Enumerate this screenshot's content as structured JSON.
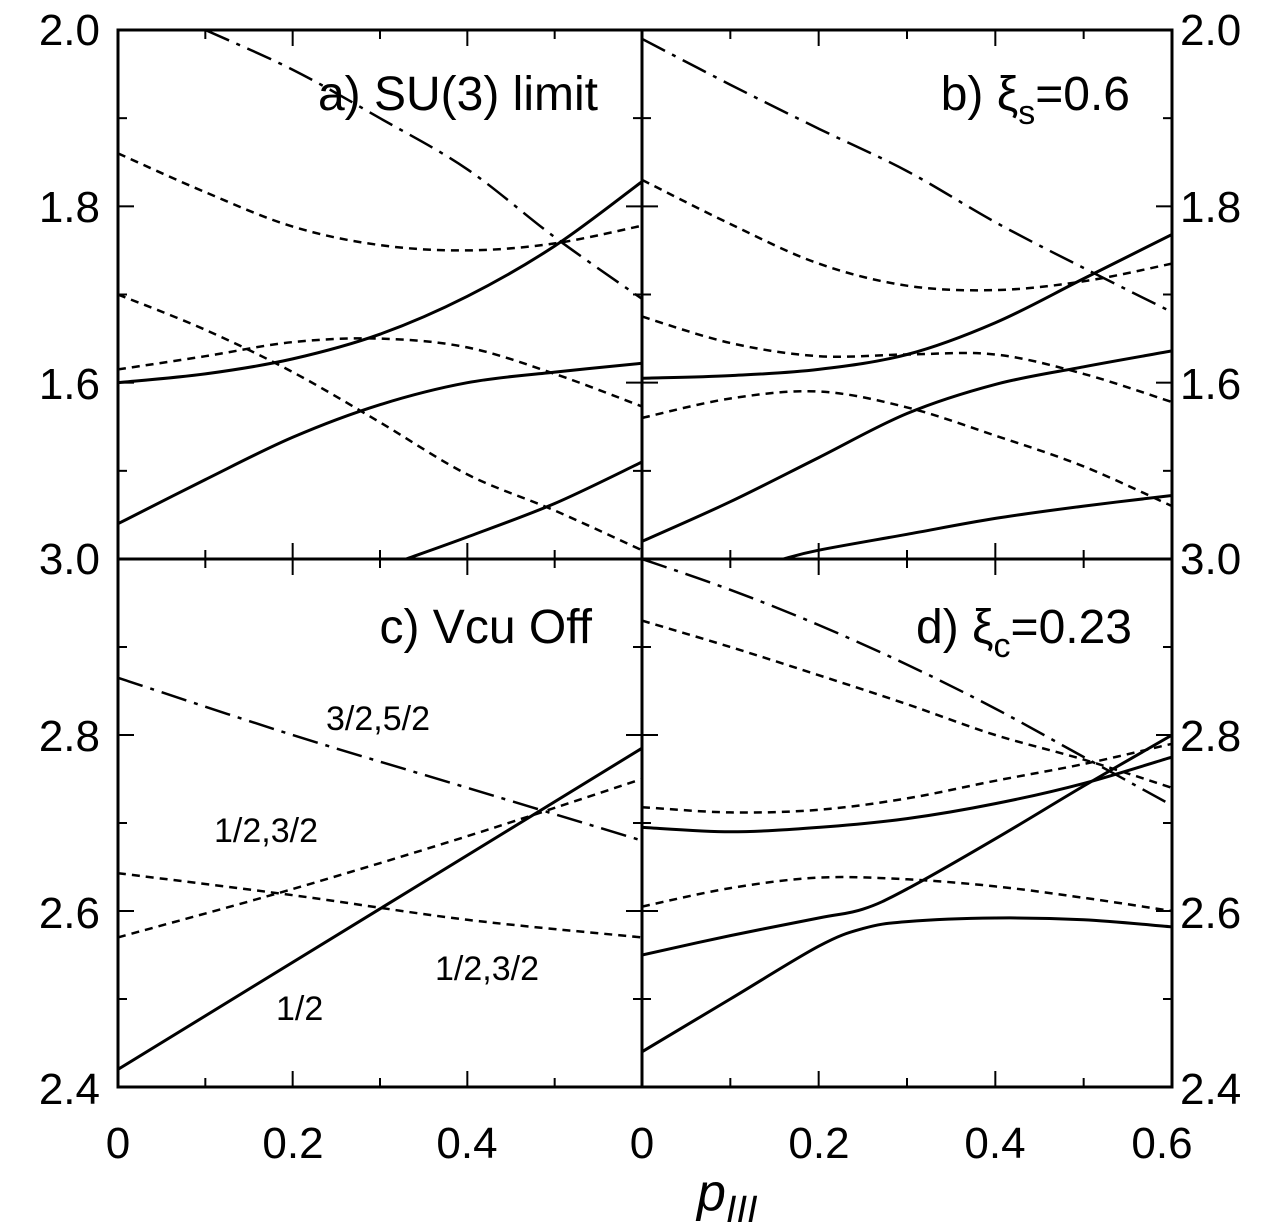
{
  "chart_data": {
    "type": "line",
    "xlabel": "p_III",
    "xlabel_main": "p",
    "xlabel_sub": "III",
    "xlim": [
      0,
      0.6
    ],
    "x_ticklabels_left": [
      "0",
      "0.2",
      "0.4"
    ],
    "x_ticklabels_right": [
      "0",
      "0.2",
      "0.4",
      "0.6"
    ],
    "y_ticklabels_left": [
      "2.0",
      "1.8",
      "1.6",
      "3.0",
      "2.8",
      "2.6",
      "2.4"
    ],
    "y_ticklabels_right": [
      "2.0",
      "1.8",
      "1.6",
      "3.0",
      "2.8",
      "2.6",
      "2.4"
    ],
    "ylim": [
      2.4,
      3.0
    ],
    "panels": [
      {
        "id": "a",
        "title": "a) SU(3) limit",
        "series": [
          {
            "style": "solid",
            "x": [
              0,
              0.1,
              0.2,
              0.3,
              0.4,
              0.5,
              0.6
            ],
            "y": [
              2.6,
              2.61,
              2.627,
              2.655,
              2.698,
              2.755,
              2.828
            ]
          },
          {
            "style": "solid",
            "x": [
              0,
              0.1,
              0.2,
              0.3,
              0.4,
              0.5,
              0.6
            ],
            "y": [
              2.44,
              2.49,
              2.538,
              2.575,
              2.6,
              2.612,
              2.622
            ]
          },
          {
            "style": "solid",
            "x": [
              0.33,
              0.4,
              0.5,
              0.6
            ],
            "y": [
              2.4,
              2.425,
              2.463,
              2.51
            ]
          },
          {
            "style": "dotted",
            "x": [
              0,
              0.1,
              0.2,
              0.3,
              0.4,
              0.5,
              0.6
            ],
            "y": [
              2.86,
              2.816,
              2.777,
              2.756,
              2.75,
              2.758,
              2.778
            ]
          },
          {
            "style": "dotted",
            "x": [
              0,
              0.1,
              0.2,
              0.3,
              0.4,
              0.5,
              0.6
            ],
            "y": [
              2.615,
              2.63,
              2.646,
              2.65,
              2.64,
              2.61,
              2.573
            ]
          },
          {
            "style": "dotted",
            "x": [
              0,
              0.1,
              0.2,
              0.3,
              0.4,
              0.5,
              0.6
            ],
            "y": [
              2.7,
              2.66,
              2.612,
              2.555,
              2.496,
              2.455,
              2.41
            ]
          },
          {
            "style": "dashdot",
            "x": [
              0.1,
              0.2,
              0.3,
              0.4,
              0.5,
              0.6
            ],
            "y": [
              3.0,
              2.955,
              2.9,
              2.842,
              2.765,
              2.695
            ]
          }
        ]
      },
      {
        "id": "b",
        "title": "b) ξs=0.6",
        "title_pre": "b)  ξ",
        "title_sub": "s",
        "title_post": "=0.6",
        "series": [
          {
            "style": "solid",
            "x": [
              0,
              0.1,
              0.2,
              0.3,
              0.4,
              0.5,
              0.6
            ],
            "y": [
              2.605,
              2.608,
              2.615,
              2.632,
              2.668,
              2.718,
              2.768
            ]
          },
          {
            "style": "solid",
            "x": [
              0,
              0.1,
              0.2,
              0.3,
              0.4,
              0.5,
              0.6
            ],
            "y": [
              2.42,
              2.465,
              2.515,
              2.565,
              2.598,
              2.618,
              2.636
            ]
          },
          {
            "style": "solid",
            "x": [
              0.16,
              0.2,
              0.3,
              0.4,
              0.5,
              0.6
            ],
            "y": [
              2.4,
              2.41,
              2.428,
              2.446,
              2.46,
              2.472
            ]
          },
          {
            "style": "dotted",
            "x": [
              0,
              0.1,
              0.2,
              0.3,
              0.4,
              0.5,
              0.6
            ],
            "y": [
              2.83,
              2.78,
              2.735,
              2.71,
              2.705,
              2.715,
              2.735
            ]
          },
          {
            "style": "dotted",
            "x": [
              0,
              0.1,
              0.2,
              0.3,
              0.4,
              0.5,
              0.6
            ],
            "y": [
              2.675,
              2.645,
              2.63,
              2.632,
              2.632,
              2.61,
              2.578
            ]
          },
          {
            "style": "dotted",
            "x": [
              0,
              0.1,
              0.2,
              0.3,
              0.4,
              0.5,
              0.6
            ],
            "y": [
              2.56,
              2.582,
              2.59,
              2.572,
              2.54,
              2.505,
              2.46
            ]
          },
          {
            "style": "dashdot",
            "x": [
              0,
              0.1,
              0.2,
              0.3,
              0.4,
              0.5,
              0.6
            ],
            "y": [
              2.99,
              2.938,
              2.888,
              2.84,
              2.782,
              2.73,
              2.68
            ]
          }
        ]
      },
      {
        "id": "c",
        "title": "c) Vcu Off",
        "annotations": [
          "3/2,5/2",
          "1/2,3/2",
          "1/2,3/2",
          "1/2"
        ],
        "series": [
          {
            "style": "solid",
            "x": [
              0,
              0.6
            ],
            "y": [
              2.42,
              2.785
            ],
            "label": "1/2"
          },
          {
            "style": "dotted",
            "x": [
              0,
              0.2,
              0.4,
              0.6
            ],
            "y": [
              2.57,
              2.625,
              2.685,
              2.75
            ],
            "label": "1/2,3/2"
          },
          {
            "style": "dotted",
            "x": [
              0,
              0.2,
              0.4,
              0.6
            ],
            "y": [
              2.643,
              2.618,
              2.59,
              2.57
            ],
            "label": "1/2,3/2"
          },
          {
            "style": "dashdot",
            "x": [
              0,
              0.2,
              0.4,
              0.6
            ],
            "y": [
              2.865,
              2.8,
              2.74,
              2.68
            ],
            "label": "3/2,5/2"
          }
        ]
      },
      {
        "id": "d",
        "title": "d) ξc=0.23",
        "title_pre": "d)  ξ",
        "title_sub": "c",
        "title_post": "=0.23",
        "series": [
          {
            "style": "solid",
            "x": [
              0,
              0.1,
              0.2,
              0.3,
              0.4,
              0.5,
              0.6
            ],
            "y": [
              2.695,
              2.69,
              2.695,
              2.705,
              2.722,
              2.745,
              2.775
            ]
          },
          {
            "style": "solid",
            "x": [
              0,
              0.1,
              0.2,
              0.25,
              0.3,
              0.4,
              0.5,
              0.6
            ],
            "y": [
              2.55,
              2.572,
              2.592,
              2.602,
              2.625,
              2.682,
              2.742,
              2.8
            ]
          },
          {
            "style": "solid",
            "x": [
              0,
              0.1,
              0.2,
              0.25,
              0.3,
              0.4,
              0.5,
              0.6
            ],
            "y": [
              2.44,
              2.5,
              2.56,
              2.58,
              2.588,
              2.592,
              2.59,
              2.582
            ]
          },
          {
            "style": "dotted",
            "x": [
              0,
              0.1,
              0.2,
              0.3,
              0.4,
              0.5,
              0.6
            ],
            "y": [
              2.718,
              2.712,
              2.715,
              2.728,
              2.748,
              2.767,
              2.79
            ]
          },
          {
            "style": "dotted",
            "x": [
              0,
              0.1,
              0.2,
              0.3,
              0.4,
              0.5,
              0.6
            ],
            "y": [
              2.605,
              2.626,
              2.638,
              2.636,
              2.628,
              2.615,
              2.6
            ]
          },
          {
            "style": "dotted",
            "x": [
              0,
              0.1,
              0.2,
              0.3,
              0.4,
              0.5,
              0.6
            ],
            "y": [
              2.93,
              2.9,
              2.868,
              2.835,
              2.8,
              2.772,
              2.74
            ]
          },
          {
            "style": "dashdot",
            "x": [
              0,
              0.1,
              0.2,
              0.3,
              0.4,
              0.5,
              0.6
            ],
            "y": [
              3.0,
              2.965,
              2.925,
              2.88,
              2.83,
              2.775,
              2.72
            ]
          }
        ]
      }
    ]
  }
}
